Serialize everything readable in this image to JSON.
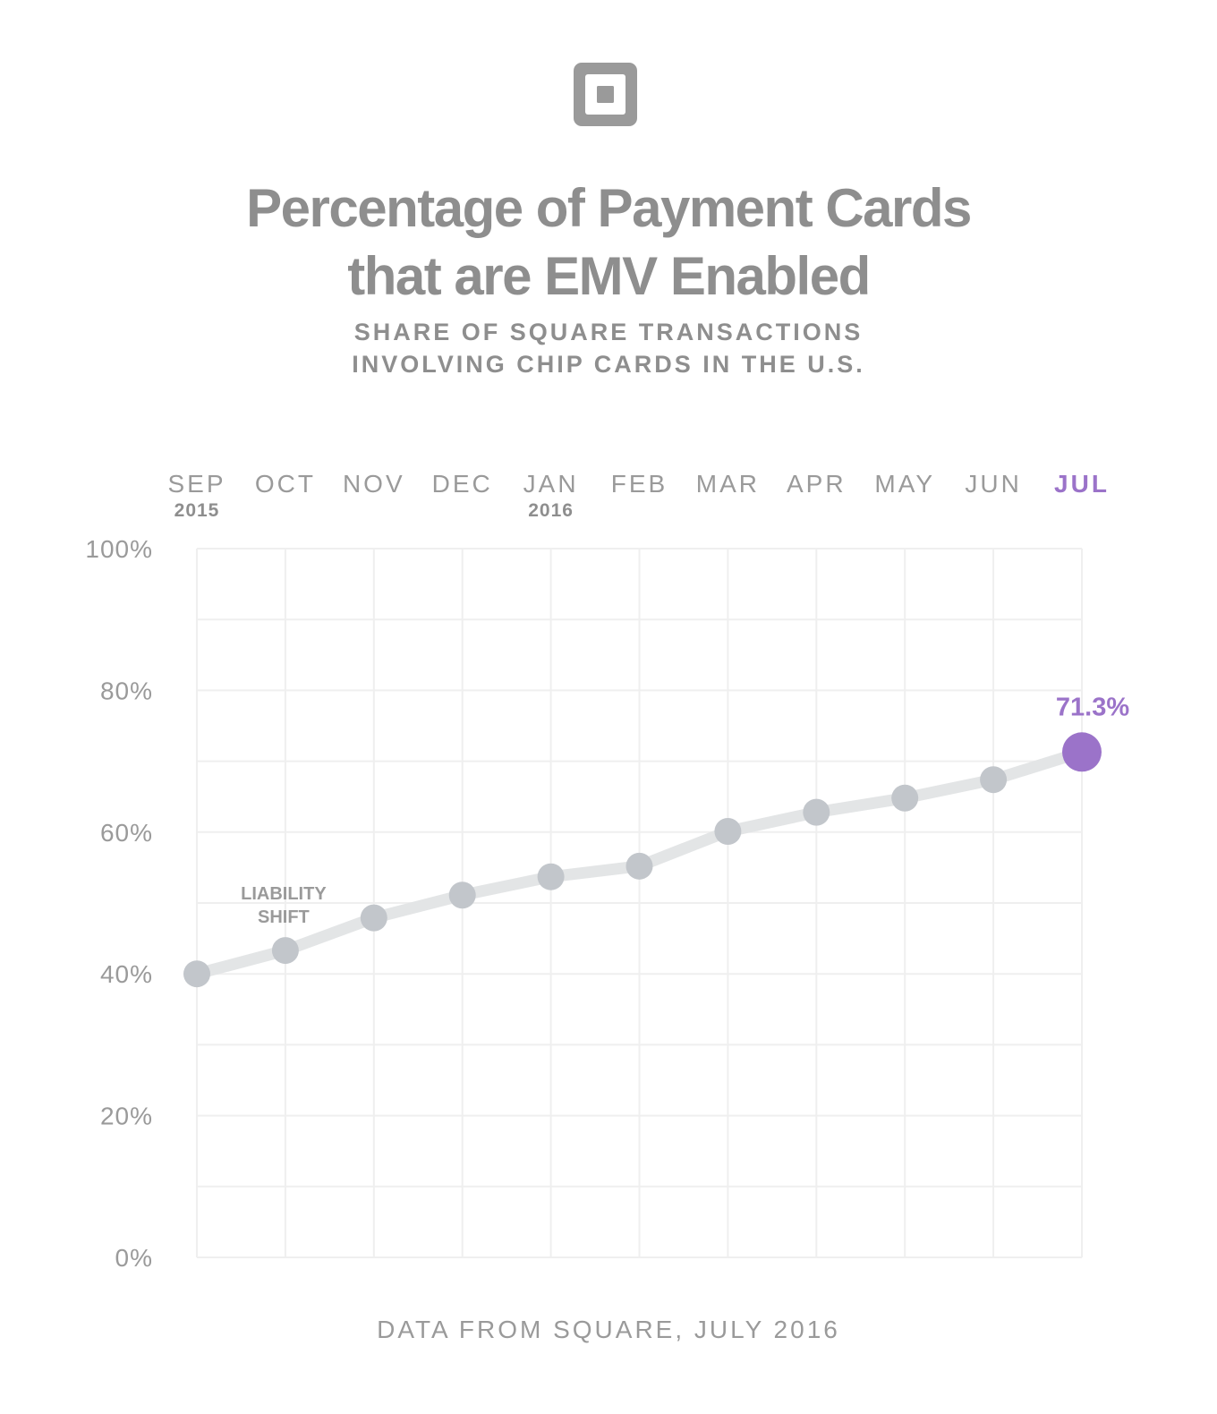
{
  "title_lines": [
    "Percentage of Payment Cards",
    "that are EMV Enabled"
  ],
  "subtitle_lines": [
    "SHARE OF SQUARE TRANSACTIONS",
    "INVOLVING CHIP CARDS IN THE U.S."
  ],
  "source": "DATA FROM SQUARE, JULY 2016",
  "logo_icon": "square-logo-icon",
  "colors": {
    "accent": "#9b73c9",
    "point": "#c2c6cb",
    "line": "#e3e5e6",
    "grid": "#efefef",
    "text": "#8e8e8e"
  },
  "chart_data": {
    "type": "line",
    "categories": [
      "SEP",
      "OCT",
      "NOV",
      "DEC",
      "JAN",
      "FEB",
      "MAR",
      "APR",
      "MAY",
      "JUN",
      "JUL"
    ],
    "year_labels": [
      {
        "category": "SEP",
        "year": "2015"
      },
      {
        "category": "JAN",
        "year": "2016"
      }
    ],
    "series": [
      {
        "values": [
          40,
          43.3,
          47.9,
          51.1,
          53.7,
          55.2,
          60.1,
          62.8,
          64.8,
          67.4,
          71.3
        ]
      }
    ],
    "ylim": [
      0,
      100
    ],
    "yticks": [
      0,
      20,
      40,
      60,
      80,
      100
    ],
    "ytick_labels": [
      "0%",
      "20%",
      "40%",
      "60%",
      "80%",
      "100%"
    ],
    "grid": true,
    "highlight": {
      "category": "JUL",
      "label": "71.3%"
    },
    "annotations": [
      {
        "category": "OCT",
        "lines": [
          "LIABILITY",
          "SHIFT"
        ]
      }
    ]
  }
}
